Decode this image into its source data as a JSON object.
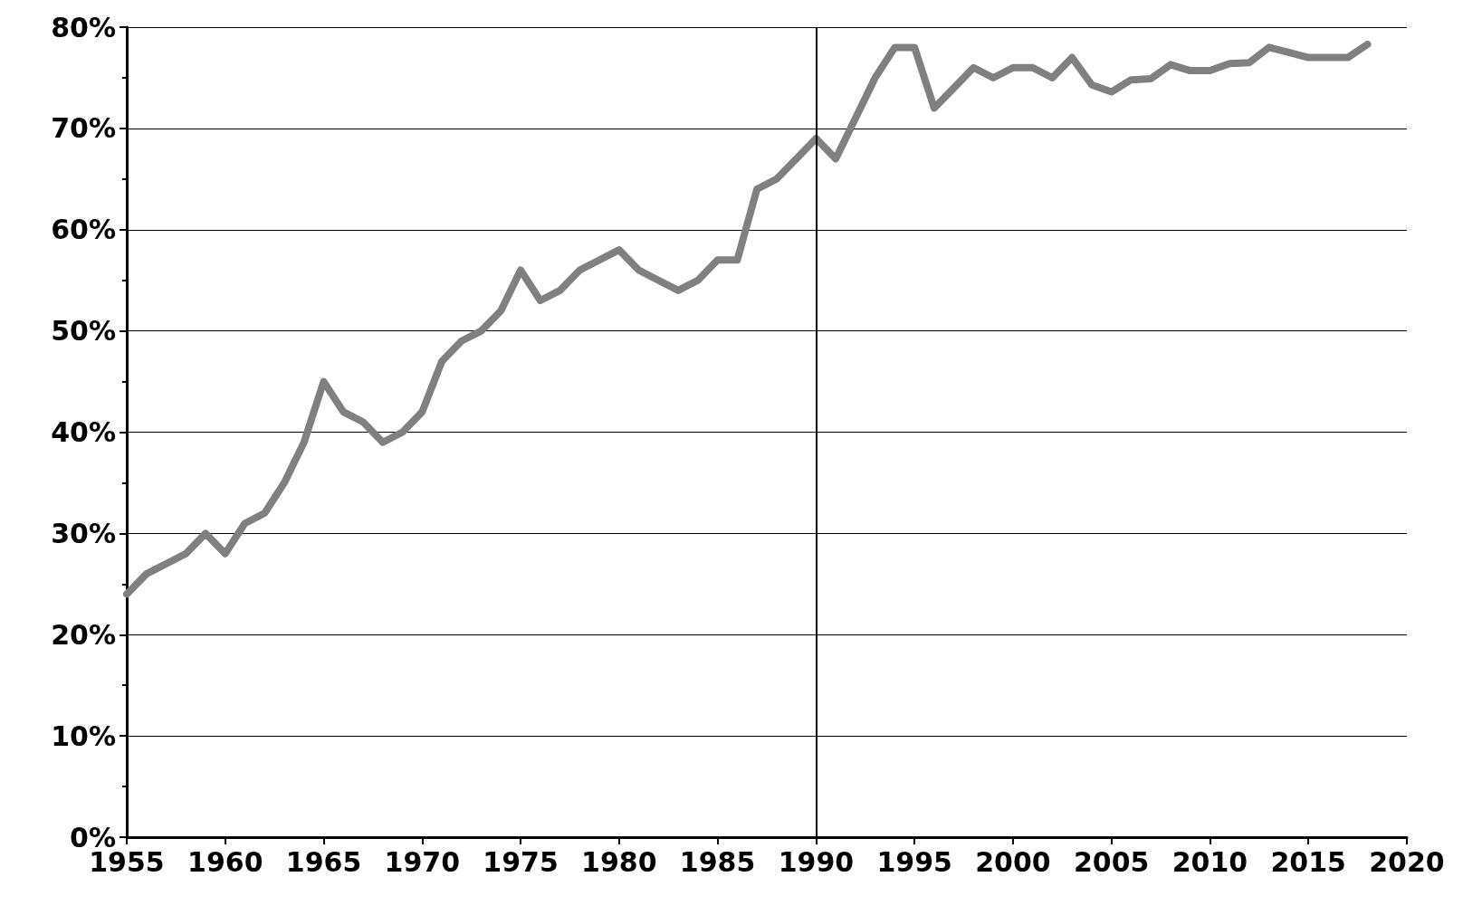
{
  "chart_data": {
    "type": "line",
    "x": [
      1955,
      1956,
      1957,
      1958,
      1959,
      1960,
      1961,
      1962,
      1963,
      1964,
      1965,
      1966,
      1967,
      1968,
      1969,
      1970,
      1971,
      1972,
      1973,
      1974,
      1975,
      1976,
      1977,
      1978,
      1979,
      1980,
      1981,
      1982,
      1983,
      1984,
      1985,
      1986,
      1987,
      1988,
      1989,
      1990,
      1991,
      1992,
      1993,
      1994,
      1995,
      1996,
      1997,
      1998,
      1999,
      2000,
      2001,
      2002,
      2003,
      2004,
      2005,
      2006,
      2007,
      2008,
      2009,
      2010,
      2011,
      2012,
      2013,
      2014,
      2015,
      2016,
      2017,
      2018
    ],
    "series": [
      {
        "color": "#808080",
        "values": [
          24,
          26,
          27,
          28,
          30,
          28,
          31,
          32,
          35,
          39,
          45,
          42,
          41,
          39,
          40,
          42,
          47,
          49,
          50,
          52,
          56,
          53,
          54,
          56,
          57,
          58,
          56,
          55,
          54,
          55,
          57,
          57,
          64,
          65,
          67,
          69,
          67,
          71,
          75,
          78,
          78,
          72,
          74,
          76,
          75,
          76,
          76,
          75,
          77,
          74.3,
          73.6,
          74.8,
          74.9,
          76.3,
          75.7,
          75.7,
          76.4,
          76.5,
          78,
          77.5,
          77,
          77,
          77,
          78.3
        ]
      }
    ],
    "xlim": [
      1955,
      2020
    ],
    "xticks": [
      1955,
      1960,
      1965,
      1970,
      1975,
      1980,
      1985,
      1990,
      1995,
      2000,
      2005,
      2010,
      2015,
      2020
    ],
    "ylim": [
      0,
      80
    ],
    "yticks": [
      {
        "value": 0,
        "label": "0%"
      },
      {
        "value": 10,
        "label": "10%"
      },
      {
        "value": 20,
        "label": "20%"
      },
      {
        "value": 30,
        "label": "30%"
      },
      {
        "value": 40,
        "label": "40%"
      },
      {
        "value": 50,
        "label": "50%"
      },
      {
        "value": 60,
        "label": "60%"
      },
      {
        "value": 70,
        "label": "70%"
      },
      {
        "value": 80,
        "label": "80%"
      }
    ],
    "grid": "y",
    "line_style": "solid",
    "ref_lines": [
      {
        "axis": "x",
        "value": 1990,
        "color": "#000000",
        "line_style": "solid"
      }
    ]
  }
}
